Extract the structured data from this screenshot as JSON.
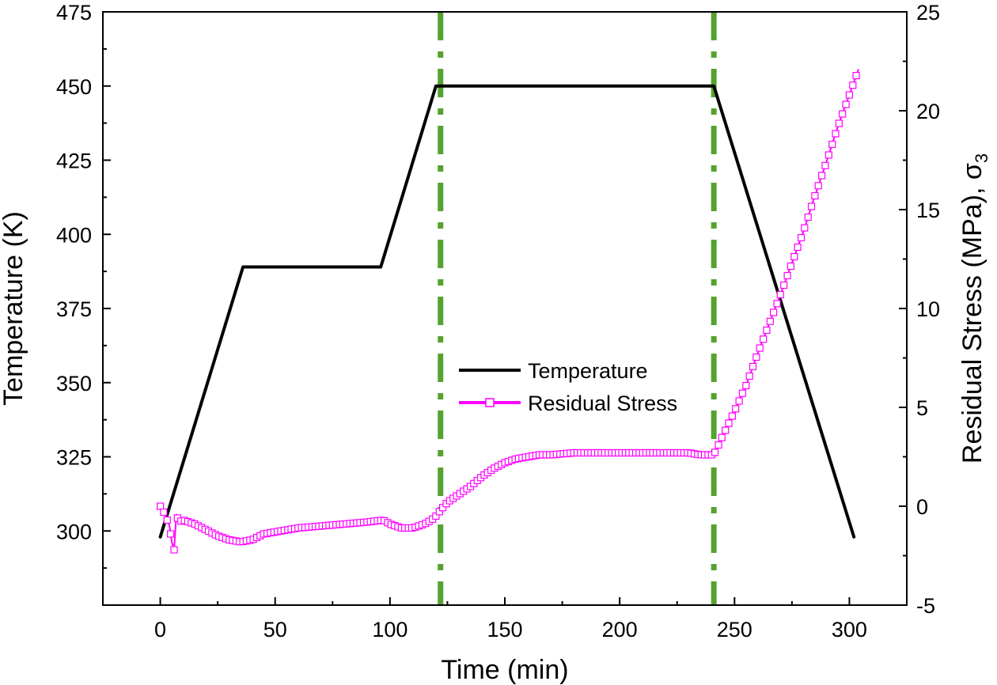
{
  "chart_data": {
    "type": "line",
    "xlabel": "Time (min)",
    "ylabel_left": "Temperature (K)",
    "ylabel_right": "Residual Stress (MPa), σ",
    "ylabel_right_subscript": "3",
    "xlim": [
      -25,
      325
    ],
    "ylim_left": [
      275,
      475
    ],
    "ylim_right": [
      -5,
      25
    ],
    "xticks": [
      0,
      50,
      100,
      150,
      200,
      250,
      300
    ],
    "yticks_left": [
      300,
      325,
      350,
      375,
      400,
      425,
      450,
      475
    ],
    "yticks_right": [
      -5,
      0,
      5,
      10,
      15,
      20,
      25
    ],
    "legend_position": "center",
    "vertical_lines": {
      "x": [
        122,
        241
      ],
      "color": "#55a32f",
      "style": "dash-dot"
    },
    "series": [
      {
        "name": "Temperature",
        "axis": "left",
        "color": "#000000",
        "marker": "none",
        "x": [
          0,
          36,
          96,
          120,
          241,
          302
        ],
        "y": [
          298,
          389,
          389,
          450,
          450,
          298
        ]
      },
      {
        "name": "Residual Stress",
        "axis": "right",
        "color": "#ff00ff",
        "marker": "open-square",
        "x": [
          0,
          2,
          4,
          5,
          6,
          7,
          8,
          10,
          15,
          20,
          25,
          30,
          35,
          40,
          45,
          50,
          60,
          70,
          80,
          90,
          97,
          100,
          105,
          110,
          115,
          118,
          120,
          122,
          125,
          130,
          135,
          140,
          145,
          150,
          155,
          160,
          165,
          170,
          180,
          190,
          200,
          210,
          220,
          230,
          235,
          240,
          241,
          245,
          250,
          255,
          260,
          265,
          270,
          275,
          280,
          285,
          290,
          295,
          300,
          304
        ],
        "y": [
          0.0,
          -0.4,
          -1.0,
          -1.8,
          -2.2,
          -0.4,
          -0.8,
          -0.7,
          -0.9,
          -1.2,
          -1.5,
          -1.7,
          -1.8,
          -1.7,
          -1.4,
          -1.3,
          -1.1,
          -1.0,
          -0.9,
          -0.8,
          -0.7,
          -0.9,
          -1.1,
          -1.1,
          -0.9,
          -0.7,
          -0.5,
          -0.2,
          0.2,
          0.6,
          1.0,
          1.5,
          1.9,
          2.2,
          2.4,
          2.5,
          2.6,
          2.6,
          2.7,
          2.7,
          2.7,
          2.7,
          2.7,
          2.7,
          2.6,
          2.6,
          2.6,
          3.6,
          4.8,
          6.1,
          7.7,
          9.2,
          10.7,
          12.3,
          13.9,
          15.7,
          17.4,
          19.2,
          20.8,
          22.1
        ]
      }
    ]
  }
}
